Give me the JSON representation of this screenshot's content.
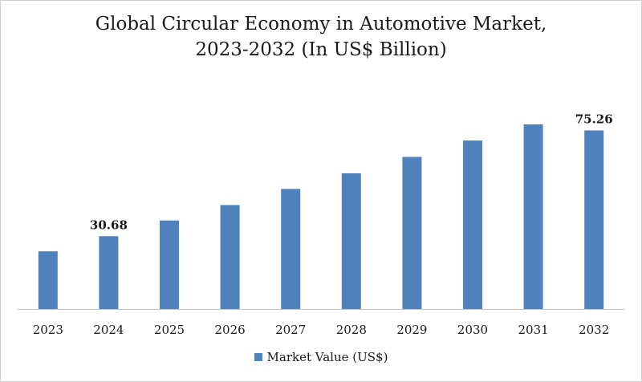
{
  "chart_data": {
    "type": "bar",
    "title_lines": [
      "Global Circular Economy in Automotive Market,",
      "2023-2032 (In US$ Billion)"
    ],
    "categories": [
      "2023",
      "2024",
      "2025",
      "2026",
      "2027",
      "2028",
      "2029",
      "2030",
      "2031",
      "2032"
    ],
    "series": [
      {
        "name": "Market Value (US$)",
        "color": "#4f81bd",
        "values": [
          24.3,
          30.68,
          37.3,
          43.8,
          50.6,
          57.2,
          64.1,
          71.0,
          77.8,
          75.26
        ]
      }
    ],
    "data_labels": [
      {
        "index": 1,
        "text": "30.68"
      },
      {
        "index": 9,
        "text": "75.26"
      }
    ],
    "legend": {
      "position": "bottom",
      "label": "Market Value (US$)"
    },
    "grid": false
  }
}
